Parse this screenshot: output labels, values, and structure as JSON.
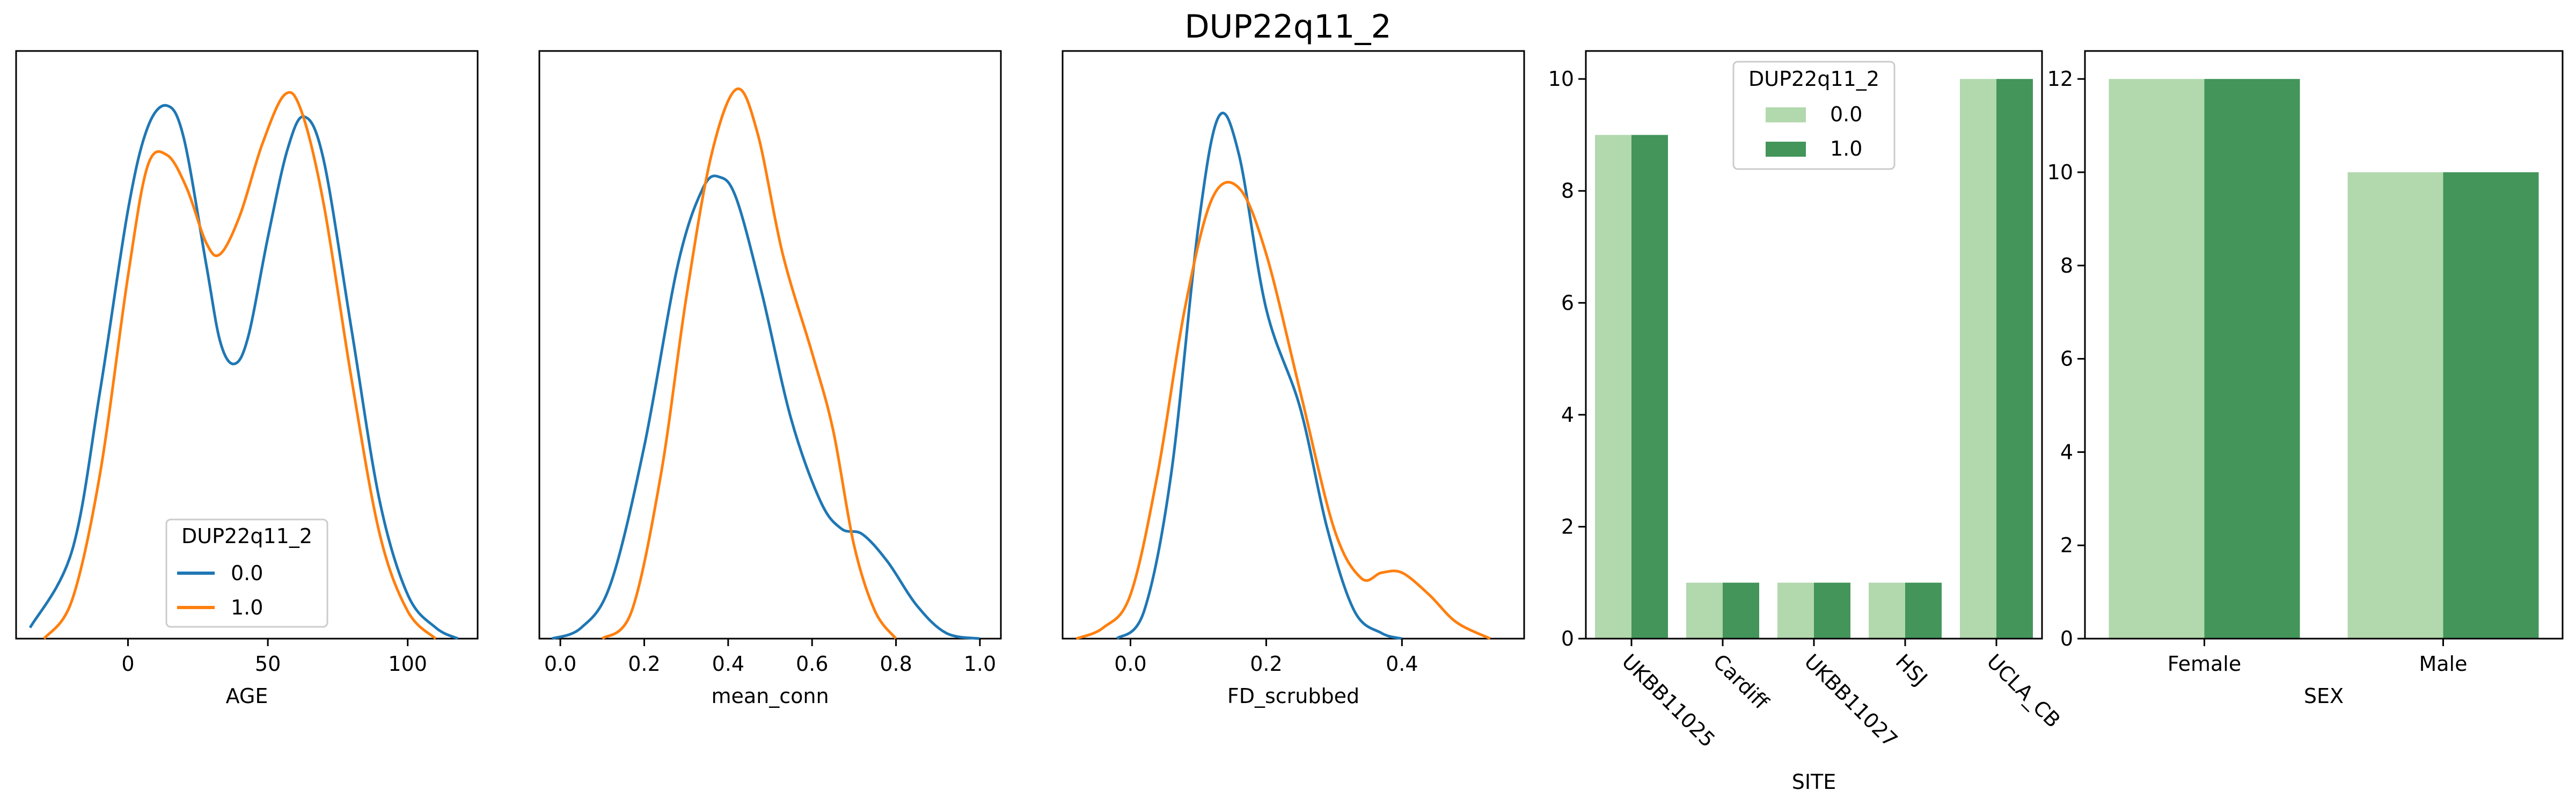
{
  "figure": {
    "title": "DUP22q11_2"
  },
  "colors": {
    "series0": "#1f77b4",
    "series1": "#ff7f0e",
    "bar0": "#b2d8ad",
    "bar1": "#43955a"
  },
  "chart_data": [
    {
      "type": "line",
      "subtype": "kde",
      "xlabel": "AGE",
      "xticks": [
        "0",
        "50",
        "100"
      ],
      "xlim": [
        -40,
        125
      ],
      "y_axis": "hidden",
      "legend": {
        "title": "DUP22q11_2",
        "placement": "lower-center",
        "entries": [
          "0.0",
          "1.0"
        ]
      },
      "series": [
        {
          "name": "0.0",
          "points": [
            [
              -35,
              0.02
            ],
            [
              -20,
              0.16
            ],
            [
              -10,
              0.45
            ],
            [
              0,
              0.78
            ],
            [
              7,
              0.93
            ],
            [
              14,
              0.97
            ],
            [
              20,
              0.91
            ],
            [
              28,
              0.68
            ],
            [
              33,
              0.54
            ],
            [
              38,
              0.5
            ],
            [
              43,
              0.55
            ],
            [
              50,
              0.73
            ],
            [
              57,
              0.89
            ],
            [
              63,
              0.95
            ],
            [
              70,
              0.87
            ],
            [
              80,
              0.56
            ],
            [
              90,
              0.25
            ],
            [
              100,
              0.08
            ],
            [
              110,
              0.02
            ],
            [
              118,
              0.0
            ]
          ]
        },
        {
          "name": "1.0",
          "points": [
            [
              -30,
              0.0
            ],
            [
              -20,
              0.07
            ],
            [
              -10,
              0.3
            ],
            [
              0,
              0.66
            ],
            [
              7,
              0.86
            ],
            [
              14,
              0.88
            ],
            [
              21,
              0.82
            ],
            [
              28,
              0.72
            ],
            [
              33,
              0.7
            ],
            [
              40,
              0.77
            ],
            [
              48,
              0.9
            ],
            [
              56,
              0.99
            ],
            [
              62,
              0.96
            ],
            [
              70,
              0.79
            ],
            [
              80,
              0.47
            ],
            [
              90,
              0.19
            ],
            [
              100,
              0.05
            ],
            [
              110,
              0.0
            ]
          ]
        }
      ]
    },
    {
      "type": "line",
      "subtype": "kde",
      "xlabel": "mean_conn",
      "xticks": [
        "0.0",
        "0.2",
        "0.4",
        "0.6",
        "0.8",
        "1.0"
      ],
      "xlim": [
        -0.05,
        1.05
      ],
      "y_axis": "hidden",
      "series": [
        {
          "name": "0.0",
          "points": [
            [
              -0.02,
              0.0
            ],
            [
              0.05,
              0.02
            ],
            [
              0.12,
              0.1
            ],
            [
              0.2,
              0.35
            ],
            [
              0.28,
              0.68
            ],
            [
              0.34,
              0.82
            ],
            [
              0.38,
              0.84
            ],
            [
              0.42,
              0.8
            ],
            [
              0.48,
              0.63
            ],
            [
              0.55,
              0.4
            ],
            [
              0.62,
              0.25
            ],
            [
              0.67,
              0.2
            ],
            [
              0.72,
              0.19
            ],
            [
              0.78,
              0.14
            ],
            [
              0.85,
              0.06
            ],
            [
              0.92,
              0.01
            ],
            [
              1.0,
              0.0
            ]
          ]
        },
        {
          "name": "1.0",
          "points": [
            [
              0.1,
              0.0
            ],
            [
              0.17,
              0.05
            ],
            [
              0.24,
              0.3
            ],
            [
              0.3,
              0.62
            ],
            [
              0.36,
              0.88
            ],
            [
              0.42,
              1.0
            ],
            [
              0.47,
              0.92
            ],
            [
              0.53,
              0.7
            ],
            [
              0.6,
              0.52
            ],
            [
              0.65,
              0.38
            ],
            [
              0.7,
              0.17
            ],
            [
              0.75,
              0.05
            ],
            [
              0.8,
              0.0
            ]
          ]
        }
      ]
    },
    {
      "type": "line",
      "subtype": "kde",
      "xlabel": "FD_scrubbed",
      "xticks": [
        "0.0",
        "0.2",
        "0.4"
      ],
      "xlim": [
        -0.1,
        0.58
      ],
      "y_axis": "hidden",
      "series": [
        {
          "name": "0.0",
          "points": [
            [
              -0.02,
              0.0
            ],
            [
              0.02,
              0.05
            ],
            [
              0.06,
              0.3
            ],
            [
              0.1,
              0.75
            ],
            [
              0.13,
              0.95
            ],
            [
              0.16,
              0.88
            ],
            [
              0.2,
              0.6
            ],
            [
              0.25,
              0.42
            ],
            [
              0.29,
              0.2
            ],
            [
              0.33,
              0.05
            ],
            [
              0.37,
              0.01
            ],
            [
              0.4,
              0.0
            ]
          ]
        },
        {
          "name": "1.0",
          "points": [
            [
              -0.08,
              0.0
            ],
            [
              -0.04,
              0.02
            ],
            [
              0.0,
              0.08
            ],
            [
              0.04,
              0.3
            ],
            [
              0.08,
              0.6
            ],
            [
              0.12,
              0.8
            ],
            [
              0.16,
              0.82
            ],
            [
              0.2,
              0.7
            ],
            [
              0.25,
              0.45
            ],
            [
              0.3,
              0.2
            ],
            [
              0.34,
              0.11
            ],
            [
              0.37,
              0.12
            ],
            [
              0.4,
              0.12
            ],
            [
              0.44,
              0.08
            ],
            [
              0.48,
              0.03
            ],
            [
              0.53,
              0.0
            ]
          ]
        }
      ]
    },
    {
      "type": "bar",
      "xlabel": "SITE",
      "categories": [
        "UKBB11025",
        "Cardiff",
        "UKBB11027",
        "HSJ",
        "UCLA_CB"
      ],
      "yticks": [
        "0",
        "2",
        "4",
        "6",
        "8",
        "10"
      ],
      "ylim": [
        0,
        10.5
      ],
      "legend": {
        "title": "DUP22q11_2",
        "placement": "upper-center",
        "entries": [
          "0.0",
          "1.0"
        ]
      },
      "series": [
        {
          "name": "0.0",
          "values": [
            9,
            1,
            1,
            1,
            10
          ]
        },
        {
          "name": "1.0",
          "values": [
            9,
            1,
            1,
            1,
            10
          ]
        }
      ]
    },
    {
      "type": "bar",
      "xlabel": "SEX",
      "categories": [
        "Female",
        "Male"
      ],
      "yticks": [
        "0",
        "2",
        "4",
        "6",
        "8",
        "10",
        "12"
      ],
      "ylim": [
        0,
        12.6
      ],
      "series": [
        {
          "name": "0.0",
          "values": [
            12,
            10
          ]
        },
        {
          "name": "1.0",
          "values": [
            12,
            10
          ]
        }
      ]
    }
  ]
}
